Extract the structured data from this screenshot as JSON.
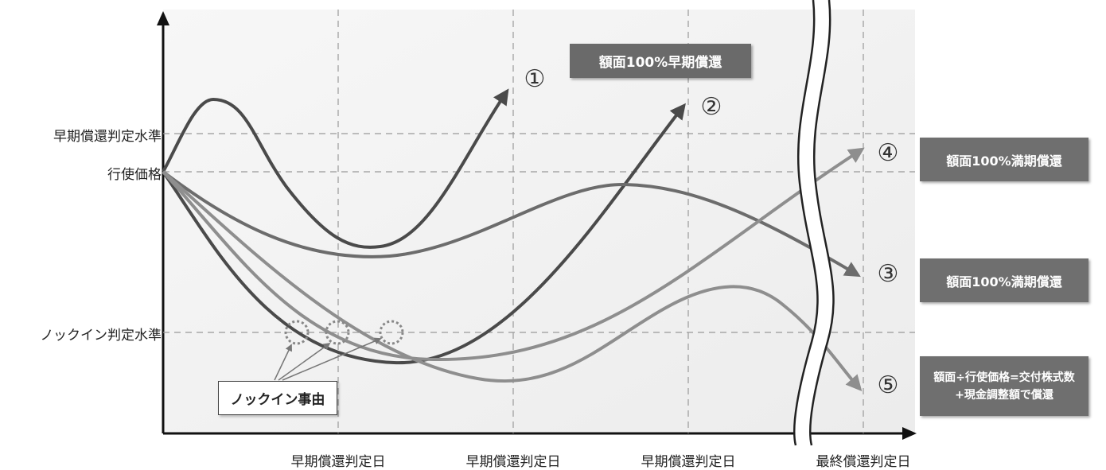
{
  "y_labels": {
    "early_level": "早期償還判定水準",
    "strike": "行使価格",
    "knockin_level": "ノックイン判定水準"
  },
  "x_labels": [
    "早期償還判定日",
    "早期償還判定日",
    "早期償還判定日",
    "最終償還判定日"
  ],
  "scenario_numbers": [
    "①",
    "②",
    "③",
    "④",
    "⑤"
  ],
  "outcome_boxes": {
    "early": "額面100%早期償還",
    "maturity_4": "額面100%満期償還",
    "maturity_3": "額面100%満期償還",
    "shares_line1": "額面÷行使価格=交付株式数",
    "shares_line2": "+現金調整額で償還"
  },
  "knockin_event_label": "ノックイン事由",
  "colors": {
    "dark": "#4a4a4a",
    "mid": "#6c6c6c",
    "light": "#8e8e8e",
    "box": "#6f6f6f"
  }
}
